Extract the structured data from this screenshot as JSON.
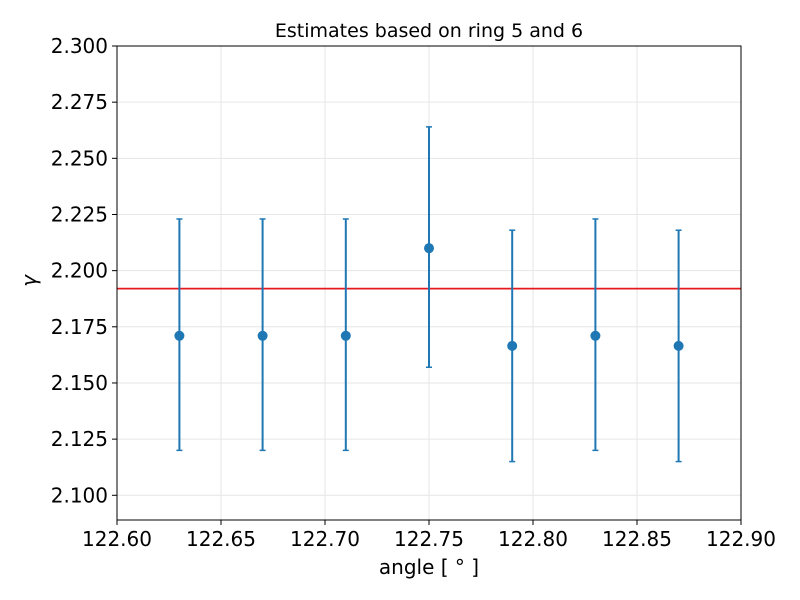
{
  "chart_data": {
    "type": "scatter",
    "title": "Estimates based on ring 5 and 6",
    "xlabel": "angle [ ° ]",
    "ylabel": "γ",
    "xlim": [
      122.6,
      122.9
    ],
    "ylim": [
      2.089,
      2.3
    ],
    "grid": true,
    "x_ticks": [
      122.6,
      122.65,
      122.7,
      122.75,
      122.8,
      122.85,
      122.9
    ],
    "x_tick_labels": [
      "122.60",
      "122.65",
      "122.70",
      "122.75",
      "122.80",
      "122.85",
      "122.90"
    ],
    "y_ticks": [
      2.1,
      2.125,
      2.15,
      2.175,
      2.2,
      2.225,
      2.25,
      2.275,
      2.3
    ],
    "y_tick_labels": [
      "2.100",
      "2.125",
      "2.150",
      "2.175",
      "2.200",
      "2.225",
      "2.250",
      "2.275",
      "2.300"
    ],
    "series": [
      {
        "color": "#1f77b4",
        "x": [
          122.63,
          122.67,
          122.71,
          122.75,
          122.79,
          122.83,
          122.87
        ],
        "y": [
          2.171,
          2.171,
          2.171,
          2.21,
          2.1665,
          2.171,
          2.1665
        ],
        "yerr_low": [
          2.12,
          2.12,
          2.12,
          2.157,
          2.115,
          2.12,
          2.115
        ],
        "yerr_high": [
          2.223,
          2.223,
          2.223,
          2.264,
          2.218,
          2.223,
          2.218
        ]
      }
    ],
    "reference_line": {
      "y": 2.192,
      "color": "#e41a1c"
    }
  }
}
